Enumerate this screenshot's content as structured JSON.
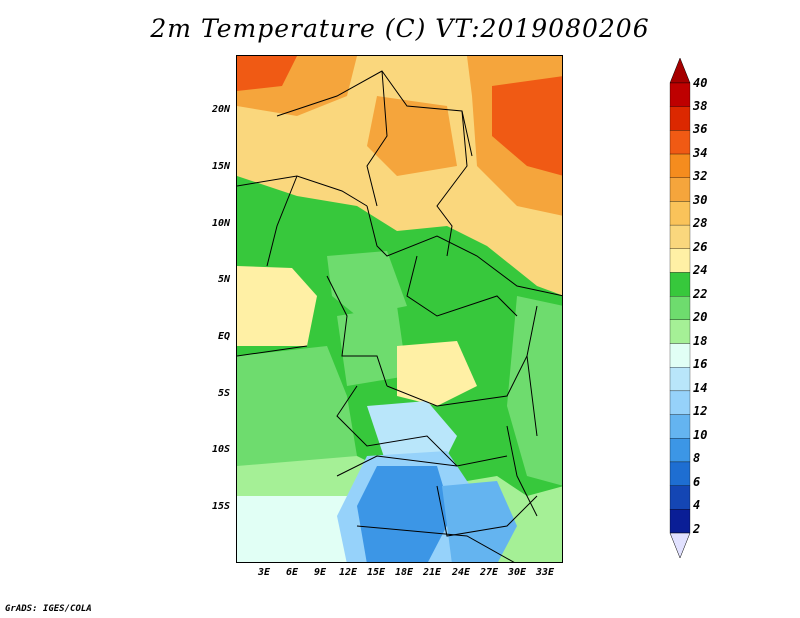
{
  "title": "2m Temperature (C) VT:2019080206",
  "footer": "GrADS: IGES/COLA",
  "map": {
    "region": "Central Africa",
    "projection": "latlon",
    "lon_range": [
      0,
      35
    ],
    "lat_range": [
      -20,
      25
    ],
    "lat_labels": [
      "20N",
      "15N",
      "10N",
      "5N",
      "EQ",
      "5S",
      "10S",
      "15S"
    ],
    "lon_labels": [
      "3E",
      "6E",
      "9E",
      "12E",
      "15E",
      "18E",
      "21E",
      "24E",
      "27E",
      "30E",
      "33E"
    ]
  },
  "colorbar": {
    "levels": [
      "40",
      "38",
      "36",
      "34",
      "32",
      "30",
      "28",
      "26",
      "24",
      "22",
      "20",
      "18",
      "16",
      "14",
      "12",
      "10",
      "8",
      "6",
      "4",
      "2"
    ],
    "colors": {
      "gt40": "#a50000",
      "38_40": "#be0000",
      "36_38": "#dc2800",
      "34_36": "#f05a14",
      "32_34": "#f58c1e",
      "30_32": "#f5a53c",
      "28_30": "#fac35a",
      "26_28": "#fad77d",
      "24_26": "#fff0a5",
      "22_24": "#37c83c",
      "20_22": "#6edc6e",
      "18_20": "#a5f096",
      "16_18": "#e1fff5",
      "14_16": "#b9e6fa",
      "12_14": "#96d2fa",
      "10_12": "#64b4f0",
      "8_10": "#3c96e6",
      "6_8": "#1e6ed2",
      "4_6": "#1446b4",
      "2_4": "#0a1e96",
      "lt2": "#e1e1ff"
    }
  }
}
